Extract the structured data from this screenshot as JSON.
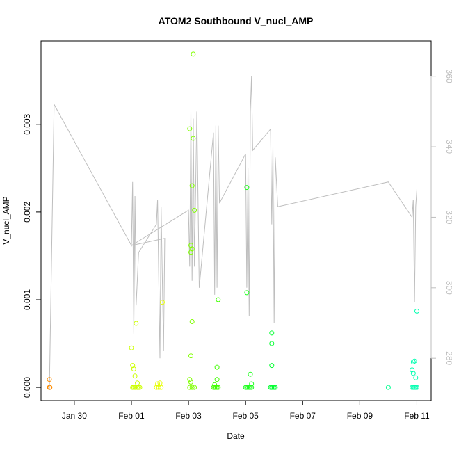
{
  "chart_data": {
    "type": "scatter",
    "title": "ATOM2 Southbound V_nucl_AMP",
    "xlabel": "Date",
    "ylabel": "V_nucl_AMP",
    "x_ticks": [
      "Jan 30",
      "Feb 01",
      "Feb 03",
      "Feb 05",
      "Feb 07",
      "Feb 09",
      "Feb 11"
    ],
    "y_ticks": [
      "0.000",
      "0.001",
      "0.002",
      "0.003"
    ],
    "y2_ticks": [
      "280",
      "300",
      "320",
      "340",
      "360"
    ],
    "xlim": [
      "2021-01-28T20:00",
      "2021-02-11T12:00"
    ],
    "ylim": [
      -0.00015,
      0.00395
    ],
    "y2lim": [
      268,
      370
    ],
    "colors": {
      "axis": "#000000",
      "secondary_line": "#bebebe",
      "secondary_ticks": "#bebebe"
    },
    "series": [
      {
        "color": "#ff8c00",
        "points": [
          [
            "2021-01-29T03:00",
            9e-05
          ],
          [
            "2021-01-29T03:00",
            0.0
          ],
          [
            "2021-01-29T03:30",
            0.0
          ]
        ]
      },
      {
        "color": "#ccff00",
        "points": [
          [
            "2021-02-01T00:00",
            0.00045
          ],
          [
            "2021-02-01T01:00",
            0.00025
          ],
          [
            "2021-02-01T02:00",
            0.00021
          ],
          [
            "2021-02-01T03:00",
            0.00013
          ],
          [
            "2021-02-01T04:00",
            0.00073
          ],
          [
            "2021-02-01T05:00",
            5e-05
          ],
          [
            "2021-02-01T01:00",
            0.0
          ],
          [
            "2021-02-01T02:00",
            0.0
          ],
          [
            "2021-02-01T03:00",
            0.0
          ],
          [
            "2021-02-01T05:00",
            0.0
          ],
          [
            "2021-02-01T06:00",
            0.0
          ],
          [
            "2021-02-01T07:00",
            0.0
          ]
        ]
      },
      {
        "color": "#e6ff00",
        "points": [
          [
            "2021-02-01T21:00",
            0.0
          ],
          [
            "2021-02-01T22:00",
            4e-05
          ],
          [
            "2021-02-01T23:00",
            0.0
          ],
          [
            "2021-02-02T00:00",
            5e-05
          ],
          [
            "2021-02-02T01:00",
            0.0
          ],
          [
            "2021-02-02T02:00",
            0.00097
          ]
        ]
      },
      {
        "color": "#80ff00",
        "points": [
          [
            "2021-02-03T01:00",
            0.00295
          ],
          [
            "2021-02-03T04:00",
            0.0038
          ],
          [
            "2021-02-03T04:00",
            0.00284
          ],
          [
            "2021-02-03T03:00",
            0.0023
          ],
          [
            "2021-02-03T05:00",
            0.00202
          ],
          [
            "2021-02-03T02:00",
            0.00162
          ],
          [
            "2021-02-03T03:00",
            0.00158
          ],
          [
            "2021-02-03T02:00",
            0.00154
          ],
          [
            "2021-02-03T03:00",
            0.00075
          ],
          [
            "2021-02-03T02:00",
            0.00036
          ],
          [
            "2021-02-03T01:00",
            9e-05
          ],
          [
            "2021-02-03T02:00",
            6e-05
          ],
          [
            "2021-02-03T01:00",
            0.0
          ],
          [
            "2021-02-03T03:00",
            0.0
          ],
          [
            "2021-02-03T05:00",
            0.0
          ]
        ]
      },
      {
        "color": "#40ff00",
        "points": [
          [
            "2021-02-03T21:00",
            0.0
          ],
          [
            "2021-02-03T22:00",
            0.0
          ],
          [
            "2021-02-03T23:00",
            0.0
          ],
          [
            "2021-02-04T00:00",
            0.0
          ],
          [
            "2021-02-04T01:00",
            0.0
          ],
          [
            "2021-02-03T22:00",
            3e-05
          ],
          [
            "2021-02-04T00:00",
            0.00023
          ],
          [
            "2021-02-04T00:00",
            9e-05
          ],
          [
            "2021-02-04T01:00",
            0.001
          ]
        ]
      },
      {
        "color": "#20ff20",
        "points": [
          [
            "2021-02-05T01:00",
            0.00228
          ],
          [
            "2021-02-05T01:00",
            0.00108
          ],
          [
            "2021-02-05T04:00",
            0.00015
          ],
          [
            "2021-02-05T05:00",
            4e-05
          ],
          [
            "2021-02-05T00:00",
            0.0
          ],
          [
            "2021-02-05T01:00",
            0.0
          ],
          [
            "2021-02-05T02:00",
            0.0
          ],
          [
            "2021-02-05T03:00",
            0.0
          ],
          [
            "2021-02-05T04:00",
            0.0
          ],
          [
            "2021-02-05T05:00",
            0.0
          ]
        ]
      },
      {
        "color": "#00ff30",
        "points": [
          [
            "2021-02-05T22:00",
            0.00062
          ],
          [
            "2021-02-05T22:00",
            0.0005
          ],
          [
            "2021-02-05T22:00",
            0.00025
          ],
          [
            "2021-02-05T21:00",
            0.0
          ],
          [
            "2021-02-05T22:00",
            0.0
          ],
          [
            "2021-02-05T23:00",
            0.0
          ],
          [
            "2021-02-06T00:00",
            0.0
          ],
          [
            "2021-02-06T01:00",
            0.0
          ]
        ]
      },
      {
        "color": "#00ff90",
        "points": [
          [
            "2021-02-10T00:00",
            0.0
          ]
        ]
      },
      {
        "color": "#00ffb0",
        "points": [
          [
            "2021-02-10T20:00",
            0.0002
          ],
          [
            "2021-02-10T21:00",
            0.00029
          ],
          [
            "2021-02-10T21:00",
            0.00016
          ],
          [
            "2021-02-10T22:00",
            0.0003
          ],
          [
            "2021-02-10T23:00",
            0.00011
          ],
          [
            "2021-02-11T00:00",
            0.00087
          ],
          [
            "2021-02-10T20:00",
            0.0
          ],
          [
            "2021-02-10T21:00",
            0.0
          ],
          [
            "2021-02-10T22:00",
            0.0
          ],
          [
            "2021-02-10T23:00",
            0.0
          ],
          [
            "2021-02-11T00:00",
            0.0
          ]
        ]
      }
    ],
    "secondary_line": [
      [
        "2021-01-29T03:00",
        271
      ],
      [
        "2021-01-29T07:00",
        352
      ],
      [
        "2021-02-01T00:00",
        312
      ],
      [
        "2021-02-01T01:00",
        330
      ],
      [
        "2021-02-01T02:00",
        287
      ],
      [
        "2021-02-01T03:00",
        326
      ],
      [
        "2021-02-01T04:00",
        295
      ],
      [
        "2021-02-01T06:00",
        310
      ],
      [
        "2021-02-01T21:00",
        318
      ],
      [
        "2021-02-01T22:00",
        325
      ],
      [
        "2021-02-02T00:00",
        280
      ],
      [
        "2021-02-02T01:00",
        323
      ],
      [
        "2021-02-02T03:00",
        282
      ],
      [
        "2021-02-02T04:00",
        314
      ],
      [
        "2021-02-01T00:00",
        312
      ],
      [
        "2021-02-03T00:00",
        322
      ],
      [
        "2021-02-03T01:00",
        306
      ],
      [
        "2021-02-03T02:00",
        350
      ],
      [
        "2021-02-03T03:00",
        302
      ],
      [
        "2021-02-03T04:00",
        348
      ],
      [
        "2021-02-03T05:00",
        306
      ],
      [
        "2021-02-03T07:00",
        350
      ],
      [
        "2021-02-03T09:00",
        300
      ],
      [
        "2021-02-03T21:00",
        344
      ],
      [
        "2021-02-03T22:00",
        298
      ],
      [
        "2021-02-03T23:00",
        346
      ],
      [
        "2021-02-04T00:00",
        300
      ],
      [
        "2021-02-04T01:00",
        346
      ],
      [
        "2021-02-04T02:00",
        324
      ],
      [
        "2021-02-05T00:00",
        338
      ],
      [
        "2021-02-05T01:00",
        300
      ],
      [
        "2021-02-05T02:00",
        334
      ],
      [
        "2021-02-05T03:00",
        292
      ],
      [
        "2021-02-05T04:00",
        350
      ],
      [
        "2021-02-05T05:00",
        360
      ],
      [
        "2021-02-05T06:00",
        339
      ],
      [
        "2021-02-05T21:00",
        345
      ],
      [
        "2021-02-05T22:00",
        318
      ],
      [
        "2021-02-05T23:00",
        340
      ],
      [
        "2021-02-06T00:00",
        290
      ],
      [
        "2021-02-06T01:00",
        337
      ],
      [
        "2021-02-06T03:00",
        323
      ],
      [
        "2021-02-10T00:00",
        330
      ],
      [
        "2021-02-10T20:00",
        320
      ],
      [
        "2021-02-10T21:00",
        325
      ],
      [
        "2021-02-10T22:00",
        296
      ],
      [
        "2021-02-10T23:00",
        323
      ],
      [
        "2021-02-11T00:00",
        328
      ]
    ]
  }
}
